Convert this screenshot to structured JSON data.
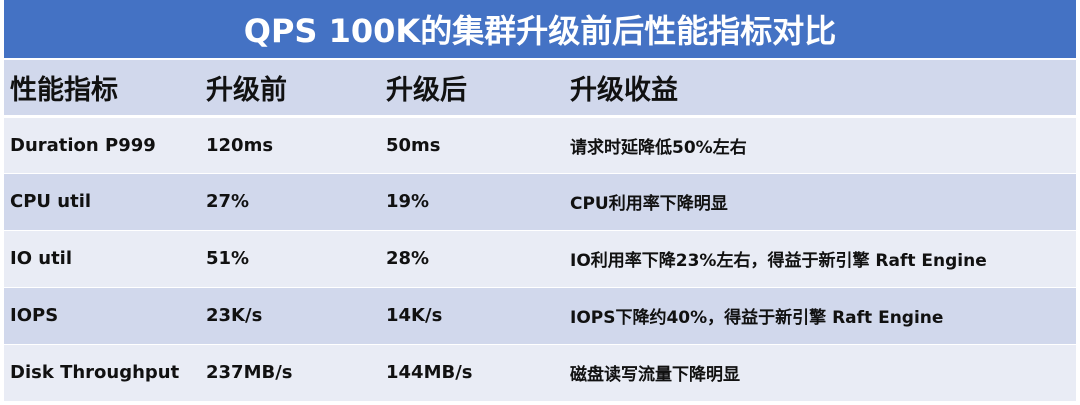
{
  "title": "QPS 100K的集群升级前后性能指标对比",
  "table": {
    "headers": [
      "性能指标",
      "升级前",
      "升级后",
      "升级收益"
    ],
    "rows": [
      [
        "Duration P999",
        "120ms",
        "50ms",
        "请求时延降低50%左右"
      ],
      [
        "CPU util",
        "27%",
        "19%",
        "CPU利用率下降明显"
      ],
      [
        "IO util",
        "51%",
        "28%",
        "IO利用率下降23%左右，得益于新引擎 Raft Engine"
      ],
      [
        "IOPS",
        "23K/s",
        "14K/s",
        "IOPS下降约40%，得益于新引擎 Raft Engine"
      ],
      [
        "Disk Throughput",
        "237MB/s",
        "144MB/s",
        "磁盘读写流量下降明显"
      ]
    ]
  },
  "colors": {
    "title_bg": "#4472c4",
    "header_bg": "#d1d8ec",
    "row_light": "#e9ecf5",
    "row_dark": "#d1d8ec"
  }
}
